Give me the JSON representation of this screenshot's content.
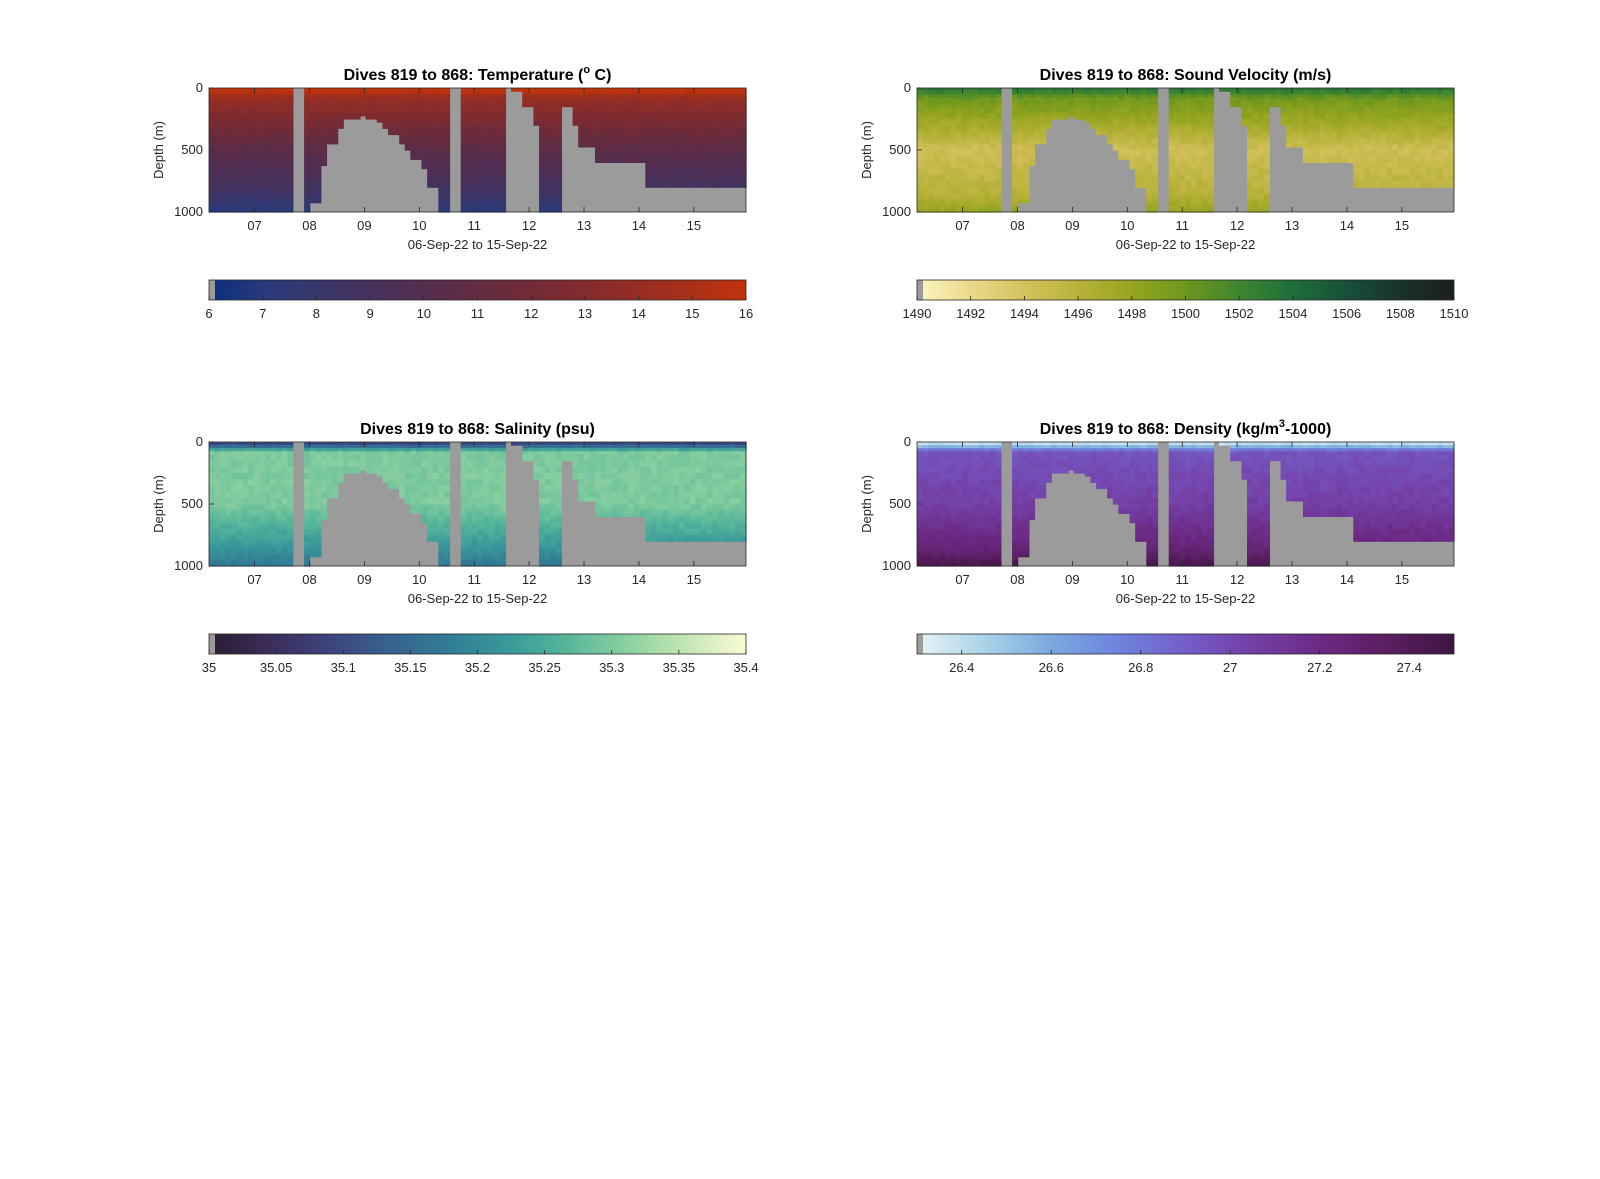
{
  "figure": {
    "background": "#ffffff",
    "missing_color": "#9b9b9b"
  },
  "chart_data": [
    {
      "type": "heatmap",
      "id": "temperature",
      "title": "Dives 819 to 868: Temperature (° C)",
      "title_sup": "o",
      "title_parts": [
        "Dives 819 to 868: Temperature (",
        " C)"
      ],
      "xlabel": "06-Sep-22 to 15-Sep-22",
      "ylabel": "Depth (m)",
      "xlim": [
        "2022-09-06T04:00",
        "2022-09-15T23:00"
      ],
      "ylim": [
        1000,
        0
      ],
      "yticks": [
        0,
        500,
        1000
      ],
      "xticks": [
        "07",
        "08",
        "09",
        "10",
        "11",
        "12",
        "13",
        "14",
        "15"
      ],
      "colorbar": {
        "min": 6,
        "max": 16,
        "ticks": [
          "6",
          "7",
          "8",
          "9",
          "10",
          "11",
          "12",
          "13",
          "14",
          "15",
          "16"
        ],
        "colors": [
          "#0b2e7e",
          "#2a3a7a",
          "#3b3568",
          "#4b2f57",
          "#5b2c48",
          "#6b2b3c",
          "#7d2b30",
          "#922d25",
          "#a82f19",
          "#c2330a"
        ]
      },
      "profile": {
        "surface": 16,
        "top_band": 14,
        "mid": 10.5,
        "deep": 8.5,
        "bottom": 7
      }
    },
    {
      "type": "heatmap",
      "id": "sound-velocity",
      "title": "Dives 819 to 868: Sound Velocity (m/s)",
      "xlabel": "06-Sep-22 to 15-Sep-22",
      "ylabel": "Depth (m)",
      "xlim": [
        "2022-09-06T04:00",
        "2022-09-15T23:00"
      ],
      "ylim": [
        1000,
        0
      ],
      "yticks": [
        0,
        500,
        1000
      ],
      "xticks": [
        "07",
        "08",
        "09",
        "10",
        "11",
        "12",
        "13",
        "14",
        "15"
      ],
      "colorbar": {
        "min": 1490,
        "max": 1510,
        "ticks": [
          "1490",
          "1492",
          "1494",
          "1496",
          "1498",
          "1500",
          "1502",
          "1504",
          "1506",
          "1508",
          "1510"
        ],
        "colors": [
          "#fcf6c2",
          "#ead98a",
          "#d5c25e",
          "#b8b23a",
          "#96a51f",
          "#6e971d",
          "#3f8530",
          "#1e6e3a",
          "#17503a",
          "#19322a",
          "#1a1e19"
        ]
      },
      "profile": {
        "surface": 1503,
        "top_band": 1500,
        "mid": 1494.5,
        "deep": 1496,
        "bottom": 1498
      }
    },
    {
      "type": "heatmap",
      "id": "salinity",
      "title": "Dives 819 to 868: Salinity (psu)",
      "xlabel": "06-Sep-22 to 15-Sep-22",
      "ylabel": "Depth (m)",
      "xlim": [
        "2022-09-06T04:00",
        "2022-09-15T23:00"
      ],
      "ylim": [
        1000,
        0
      ],
      "yticks": [
        0,
        500,
        1000
      ],
      "xticks": [
        "07",
        "08",
        "09",
        "10",
        "11",
        "12",
        "13",
        "14",
        "15"
      ],
      "colorbar": {
        "min": 35,
        "max": 35.4,
        "ticks": [
          "35",
          "35.05",
          "35.1",
          "35.15",
          "35.2",
          "35.25",
          "35.3",
          "35.35",
          "35.4"
        ],
        "colors": [
          "#2a1d31",
          "#3b2d5a",
          "#3e437e",
          "#37618e",
          "#317c96",
          "#3a989a",
          "#56b69a",
          "#8bd09f",
          "#c4e6b4",
          "#fbfbd6"
        ]
      },
      "profile": {
        "surface": 35.1,
        "top_band": 35.3,
        "mid": 35.3,
        "deep": 35.22,
        "bottom": 35.17
      }
    },
    {
      "type": "heatmap",
      "id": "density",
      "title": "Dives 819 to 868: Density (kg/m³-1000)",
      "title_sup": "3",
      "title_parts": [
        "Dives 819 to 868: Density (kg/m",
        "-1000)"
      ],
      "xlabel": "06-Sep-22 to 15-Sep-22",
      "ylabel": "Depth (m)",
      "xlim": [
        "2022-09-06T04:00",
        "2022-09-15T23:00"
      ],
      "ylim": [
        1000,
        0
      ],
      "yticks": [
        0,
        500,
        1000
      ],
      "xticks": [
        "07",
        "08",
        "09",
        "10",
        "11",
        "12",
        "13",
        "14",
        "15"
      ],
      "colorbar": {
        "min": 26.3,
        "max": 27.5,
        "ticks": [
          "26.4",
          "26.6",
          "26.8",
          "27",
          "27.2",
          "27.4"
        ],
        "colors": [
          "#e8f3f6",
          "#aad4e8",
          "#7aa9e0",
          "#6e83dc",
          "#745ec8",
          "#743fa6",
          "#6b2a84",
          "#5a1e62",
          "#3f1441"
        ]
      },
      "profile": {
        "surface": 26.4,
        "top_band": 26.95,
        "mid": 27.05,
        "deep": 27.25,
        "bottom": 27.45
      }
    }
  ]
}
